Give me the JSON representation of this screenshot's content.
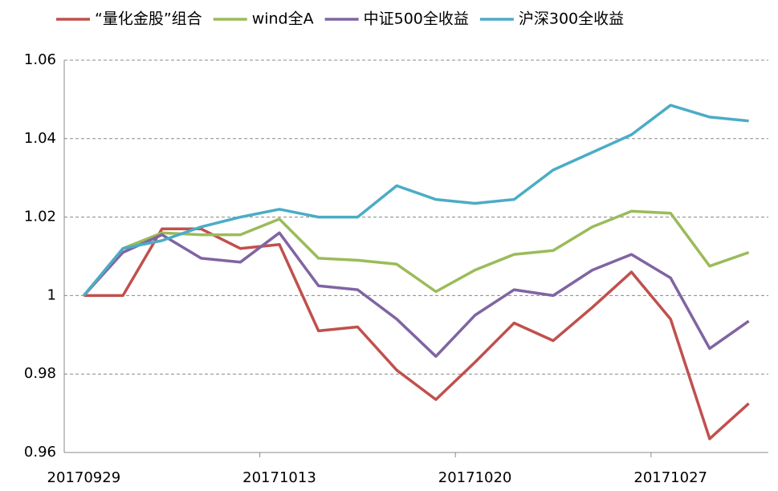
{
  "chart_data": {
    "type": "line",
    "categories": [
      "20170929",
      null,
      null,
      null,
      null,
      "20171013",
      null,
      null,
      null,
      null,
      "20171020",
      null,
      null,
      null,
      null,
      "20171027",
      null,
      null
    ],
    "series": [
      {
        "name": "“量化金股”组合",
        "color": "#c0504d",
        "values": [
          1,
          1,
          1.017,
          1.017,
          1.012,
          1.013,
          0.991,
          0.992,
          0.981,
          0.9735,
          0.983,
          0.993,
          0.9885,
          0.997,
          1.006,
          0.994,
          0.9635,
          0.9725
        ]
      },
      {
        "name": "wind全A",
        "color": "#9bbb59",
        "values": [
          1,
          1.012,
          1.016,
          1.0155,
          1.0155,
          1.0195,
          1.0095,
          1.009,
          1.008,
          1.001,
          1.0065,
          1.0105,
          1.0115,
          1.0175,
          1.0215,
          1.021,
          1.0075,
          1.011
        ]
      },
      {
        "name": "中证500全收益",
        "color": "#8064a2",
        "values": [
          1,
          1.011,
          1.0155,
          1.0095,
          1.0085,
          1.016,
          1.0025,
          1.0015,
          0.994,
          0.9845,
          0.995,
          1.0015,
          1.0,
          1.0065,
          1.0105,
          1.0045,
          0.9865,
          0.9935
        ]
      },
      {
        "name": "沪深300全收益",
        "color": "#4bacc6",
        "values": [
          1,
          1.012,
          1.014,
          1.0175,
          1.02,
          1.022,
          1.02,
          1.02,
          1.028,
          1.0245,
          1.0235,
          1.0245,
          1.032,
          1.0365,
          1.041,
          1.0485,
          1.0455,
          1.0445
        ]
      }
    ],
    "ylim": [
      0.96,
      1.06
    ],
    "yticks": [
      0.96,
      0.98,
      1,
      1.02,
      1.04,
      1.06
    ],
    "grid": true,
    "legend": "top"
  }
}
